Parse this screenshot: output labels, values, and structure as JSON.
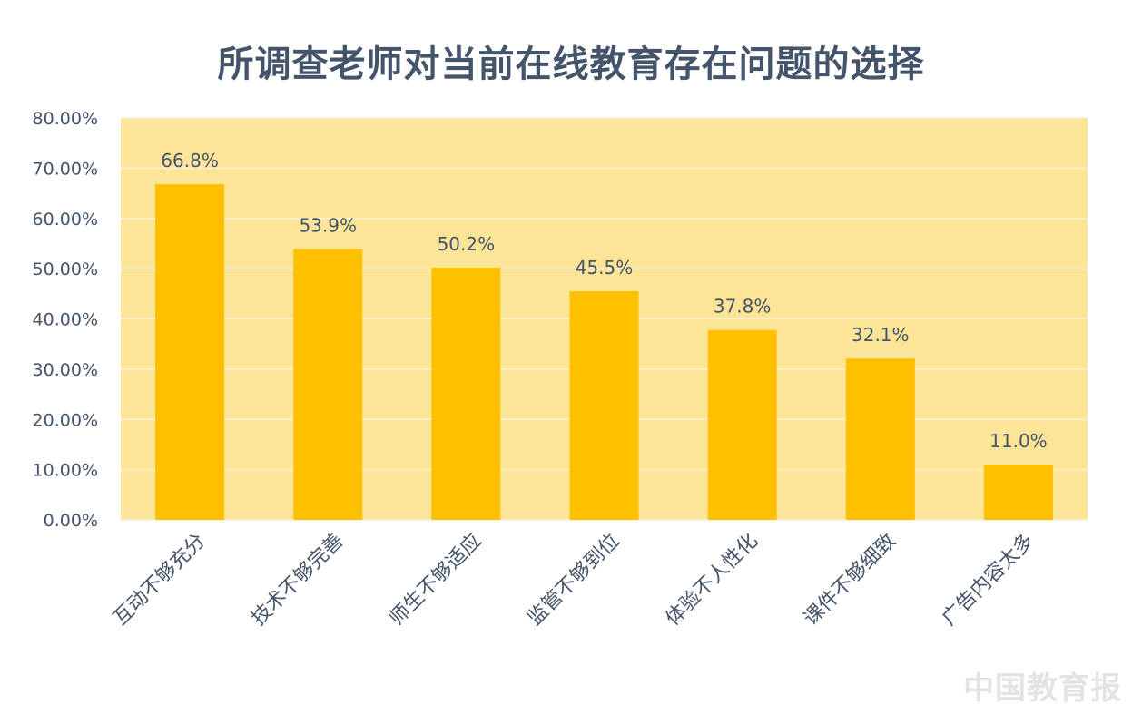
{
  "colors": {
    "plot_background": "#fde598",
    "bar": "#ffc000",
    "gridline": "#f5efd8",
    "text": "#44546a",
    "watermark": "#e3e3e3"
  },
  "watermark_text": "中国教育报",
  "chart_data": {
    "type": "bar",
    "title": "所调查老师对当前在线教育存在问题的选择",
    "xlabel": "",
    "ylabel": "",
    "ylim": [
      0,
      80
    ],
    "y_ticks": [
      0,
      10,
      20,
      30,
      40,
      50,
      60,
      70,
      80
    ],
    "y_tick_labels": [
      "0.00%",
      "10.00%",
      "20.00%",
      "30.00%",
      "40.00%",
      "50.00%",
      "60.00%",
      "70.00%",
      "80.00%"
    ],
    "grid": true,
    "legend": "none",
    "categories": [
      "互动不够充分",
      "技术不够完善",
      "师生不够适应",
      "监管不够到位",
      "体验不人性化",
      "课件不够细致",
      "广告内容太多"
    ],
    "values": [
      66.8,
      53.9,
      50.2,
      45.5,
      37.8,
      32.1,
      11.0
    ],
    "data_labels": [
      "66.8%",
      "53.9%",
      "50.2%",
      "45.5%",
      "37.8%",
      "32.1%",
      "11.0%"
    ]
  }
}
